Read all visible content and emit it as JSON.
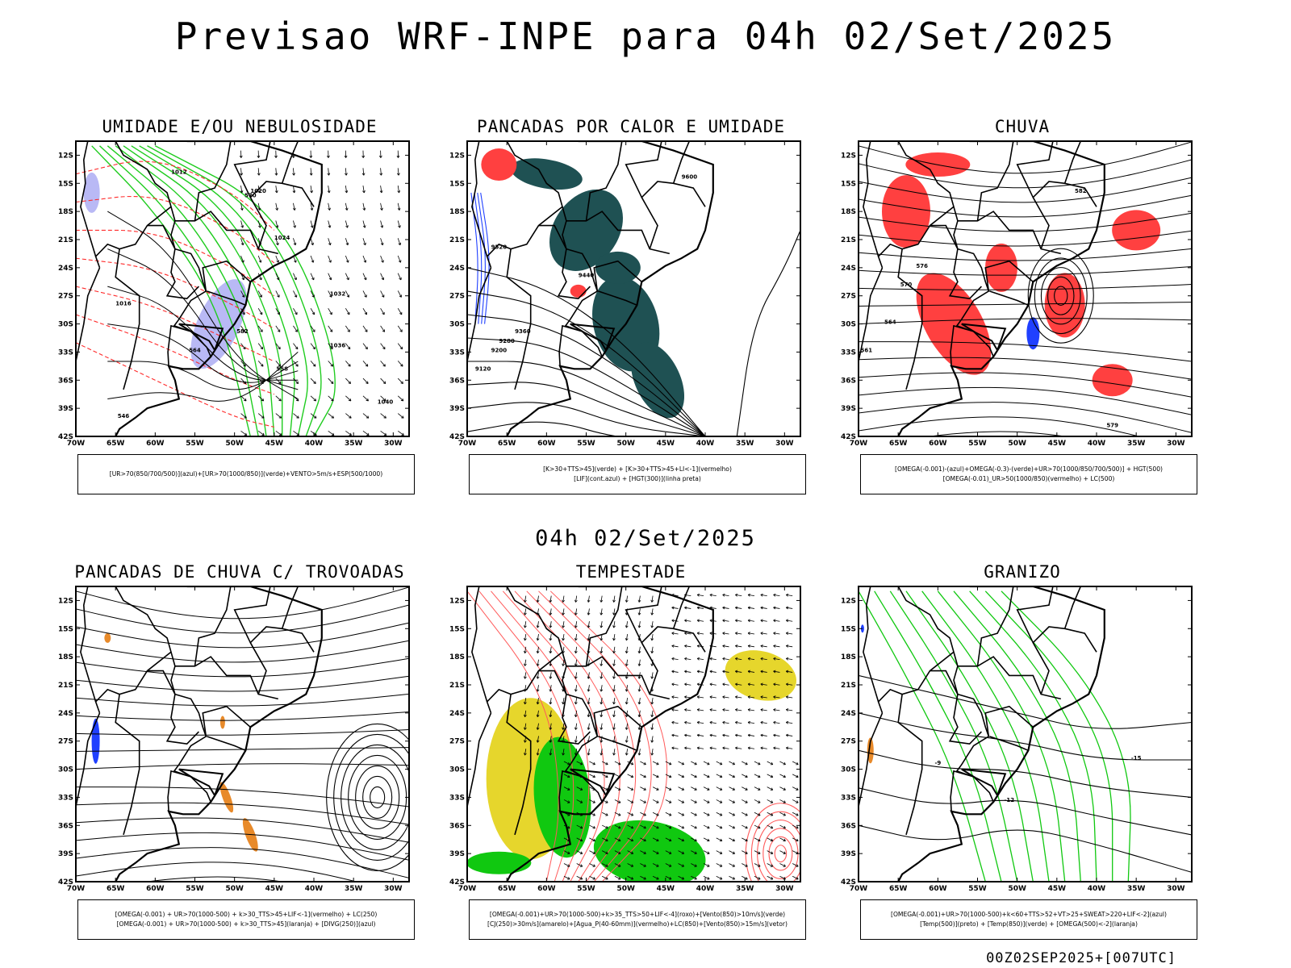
{
  "header": {
    "title": "Previsao WRF-INPE  para 04h 02/Set/2025"
  },
  "mid_time": "04h 02/Set/2025",
  "footer": {
    "code": "00Z02SEP2025+[007UTC]"
  },
  "axes": {
    "lat_ticks": [
      "12S",
      "15S",
      "18S",
      "21S",
      "24S",
      "27S",
      "30S",
      "33S",
      "36S",
      "39S",
      "42S"
    ],
    "lon_ticks": [
      "70W",
      "65W",
      "60W",
      "55W",
      "50W",
      "45W",
      "40W",
      "35W",
      "30W"
    ]
  },
  "colors": {
    "green_contour": "#1fcc1f",
    "red_dash": "#ff2a2a",
    "lavender": "#b9b9f5",
    "dark_teal": "#1f5153",
    "red_fill": "#ff4040",
    "blue": "#2040ff",
    "orange": "#e88a2a",
    "yellow": "#e6d62c",
    "bright_green": "#10c810",
    "light_red": "#ff5a5a"
  },
  "panels": [
    {
      "title": "UMIDADE E/OU NEBULOSIDADE",
      "legend": [
        "[UR>70(850/700/500)](azul)+[UR>70(1000/850)](verde)+VENTO>5m/s+ESP(500/1000)"
      ],
      "contour_labels": [
        "1012",
        "1016",
        "1020",
        "1024",
        "1032",
        "1036",
        "1040",
        "570",
        "582",
        "564",
        "558",
        "546"
      ]
    },
    {
      "title": "PANCADAS POR CALOR E UMIDADE",
      "legend": [
        "[K>30+TTS>45](verde) + [K>30+TTS>45+LI<-1](vermelho)",
        "[LIF](cont.azul) + [HGT(300)](linha preta)"
      ],
      "contour_labels": [
        "9600",
        "9520",
        "9440",
        "9360",
        "9280",
        "9200",
        "9120"
      ]
    },
    {
      "title": "CHUVA",
      "legend": [
        "[OMEGA(-0.001)-(azul)+OMEGA(-0.3)-(verde)+UR>70(1000/850/700/500)] + HGT(500)",
        "[OMEGA(-0.01)_UR>50(1000/850)(vermelho) + LC(500)"
      ],
      "contour_labels": [
        "582",
        "576",
        "570",
        "564",
        "561",
        "579"
      ]
    },
    {
      "title": "PANCADAS DE CHUVA C/ TROVOADAS",
      "legend": [
        "[OMEGA(-0.001) + UR>70(1000-500) + k>30_TTS>45+LIF<-1](vermelho) + LC(250)",
        "[OMEGA(-0.001) + UR>70(1000-500) + k>30_TTS>45](laranja) + [DIVG(250)](azul)"
      ],
      "contour_labels": []
    },
    {
      "title": "TEMPESTADE",
      "legend": [
        "[OMEGA(-0.001)+UR>70(1000-500)+k>35_TTS>50+LIF<-4](roxo)+[Vento(850)>10m/s](verde)",
        "[CJ(250)>30m/s](amarelo)+[Agua_P(40-60mm)](vermelho)+LC(850)+[Vento(850)>15m/s](vetor)"
      ],
      "contour_labels": []
    },
    {
      "title": "GRANIZO",
      "legend": [
        "[OMEGA(-0.001)+UR>70(1000-500)+k<60+TTS>52+VT>25+SWEAT>220+LIF<-2](azul)",
        "[Temp(500)](preto) + [Temp(850)](verde) + [OMEGA(500)<-2](laranja)"
      ],
      "contour_labels": [
        "-9",
        "-12",
        "-15"
      ]
    }
  ]
}
